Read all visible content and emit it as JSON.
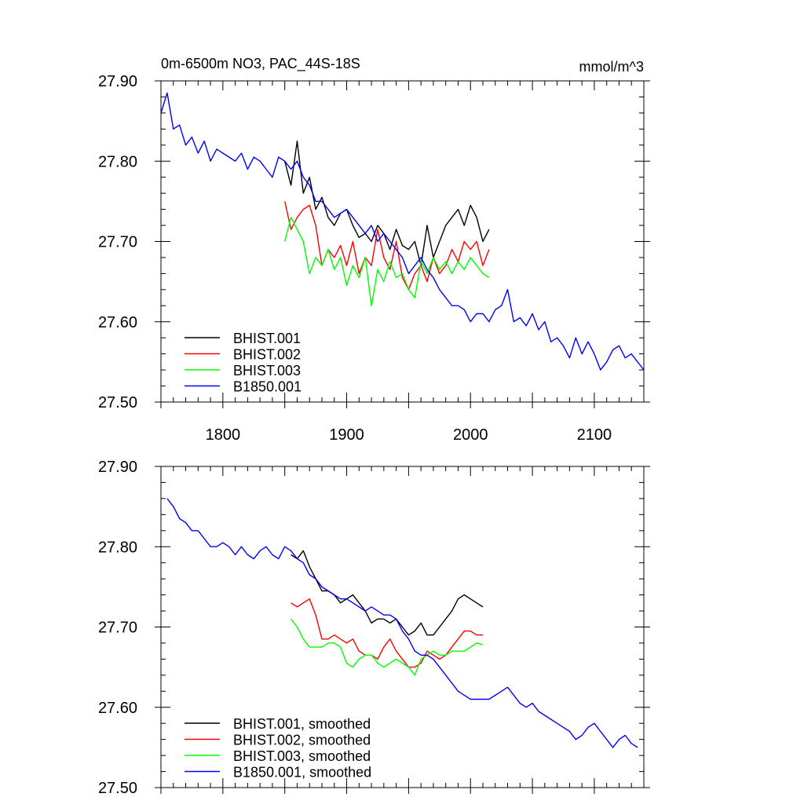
{
  "chart_data": [
    {
      "type": "line",
      "title_left": "0m-6500m NO3, PAC_44S-18S",
      "title_right": "mmol/m^3",
      "xlabel": "",
      "ylabel": "",
      "xlim": [
        1750,
        2140
      ],
      "ylim": [
        27.5,
        27.9
      ],
      "x_ticks": [
        "1800",
        "1900",
        "2000",
        "2100"
      ],
      "y_ticks": [
        "27.50",
        "27.60",
        "27.70",
        "27.80",
        "27.90"
      ],
      "legend_position": "bottom-left",
      "series": [
        {
          "name": "BHIST.001",
          "color": "#000000",
          "x": [
            1850,
            1855,
            1860,
            1865,
            1870,
            1875,
            1880,
            1885,
            1890,
            1895,
            1900,
            1905,
            1910,
            1915,
            1920,
            1925,
            1930,
            1935,
            1940,
            1945,
            1950,
            1955,
            1960,
            1965,
            1970,
            1975,
            1980,
            1985,
            1990,
            1995,
            2000,
            2005,
            2010,
            2015
          ],
          "y": [
            27.8,
            27.77,
            27.825,
            27.76,
            27.78,
            27.74,
            27.755,
            27.73,
            27.72,
            27.735,
            27.74,
            27.72,
            27.705,
            27.71,
            27.7,
            27.72,
            27.71,
            27.69,
            27.715,
            27.695,
            27.69,
            27.7,
            27.67,
            27.72,
            27.68,
            27.7,
            27.72,
            27.73,
            27.74,
            27.72,
            27.745,
            27.73,
            27.7,
            27.715
          ]
        },
        {
          "name": "BHIST.002",
          "color": "#ff0000",
          "x": [
            1850,
            1855,
            1860,
            1865,
            1870,
            1875,
            1880,
            1885,
            1890,
            1895,
            1900,
            1905,
            1910,
            1915,
            1920,
            1925,
            1930,
            1935,
            1940,
            1945,
            1950,
            1955,
            1960,
            1965,
            1970,
            1975,
            1980,
            1985,
            1990,
            1995,
            2000,
            2005,
            2010,
            2015
          ],
          "y": [
            27.75,
            27.715,
            27.73,
            27.74,
            27.745,
            27.72,
            27.67,
            27.69,
            27.68,
            27.695,
            27.67,
            27.7,
            27.66,
            27.68,
            27.67,
            27.715,
            27.68,
            27.665,
            27.7,
            27.655,
            27.64,
            27.66,
            27.67,
            27.65,
            27.68,
            27.66,
            27.67,
            27.69,
            27.675,
            27.7,
            27.69,
            27.7,
            27.67,
            27.69
          ]
        },
        {
          "name": "BHIST.003",
          "color": "#00ff00",
          "x": [
            1850,
            1855,
            1860,
            1865,
            1870,
            1875,
            1880,
            1885,
            1890,
            1895,
            1900,
            1905,
            1910,
            1915,
            1920,
            1925,
            1930,
            1935,
            1940,
            1945,
            1950,
            1955,
            1960,
            1965,
            1970,
            1975,
            1980,
            1985,
            1990,
            1995,
            2000,
            2005,
            2010,
            2015
          ],
          "y": [
            27.7,
            27.73,
            27.715,
            27.7,
            27.66,
            27.68,
            27.67,
            27.69,
            27.665,
            27.68,
            27.645,
            27.67,
            27.655,
            27.68,
            27.62,
            27.665,
            27.65,
            27.675,
            27.655,
            27.66,
            27.64,
            27.63,
            27.675,
            27.66,
            27.68,
            27.665,
            27.675,
            27.66,
            27.675,
            27.665,
            27.68,
            27.67,
            27.66,
            27.655
          ]
        },
        {
          "name": "B1850.001",
          "color": "#0000ff",
          "x": [
            1750,
            1755,
            1760,
            1765,
            1770,
            1775,
            1780,
            1785,
            1790,
            1795,
            1800,
            1805,
            1810,
            1815,
            1820,
            1825,
            1830,
            1835,
            1840,
            1845,
            1850,
            1855,
            1860,
            1865,
            1870,
            1875,
            1880,
            1885,
            1890,
            1895,
            1900,
            1905,
            1910,
            1915,
            1920,
            1925,
            1930,
            1935,
            1940,
            1945,
            1950,
            1955,
            1960,
            1965,
            1970,
            1975,
            1980,
            1985,
            1990,
            1995,
            2000,
            2005,
            2010,
            2015,
            2020,
            2025,
            2030,
            2035,
            2040,
            2045,
            2050,
            2055,
            2060,
            2065,
            2070,
            2075,
            2080,
            2085,
            2090,
            2095,
            2100,
            2105,
            2110,
            2115,
            2120,
            2125,
            2130,
            2135,
            2140
          ],
          "y": [
            27.86,
            27.885,
            27.84,
            27.845,
            27.82,
            27.83,
            27.81,
            27.825,
            27.8,
            27.815,
            27.81,
            27.805,
            27.8,
            27.81,
            27.79,
            27.805,
            27.8,
            27.79,
            27.78,
            27.805,
            27.8,
            27.79,
            27.8,
            27.78,
            27.77,
            27.75,
            27.75,
            27.74,
            27.73,
            27.735,
            27.74,
            27.73,
            27.72,
            27.71,
            27.72,
            27.7,
            27.71,
            27.7,
            27.69,
            27.68,
            27.66,
            27.67,
            27.68,
            27.665,
            27.655,
            27.64,
            27.63,
            27.62,
            27.62,
            27.615,
            27.6,
            27.61,
            27.61,
            27.6,
            27.615,
            27.62,
            27.64,
            27.6,
            27.605,
            27.595,
            27.61,
            27.59,
            27.6,
            27.575,
            27.58,
            27.57,
            27.555,
            27.58,
            27.56,
            27.575,
            27.56,
            27.54,
            27.55,
            27.565,
            27.57,
            27.555,
            27.56,
            27.55,
            27.54
          ]
        }
      ]
    },
    {
      "type": "line",
      "title_left": "",
      "title_right": "",
      "xlabel": "",
      "ylabel": "",
      "xlim": [
        1750,
        2140
      ],
      "ylim": [
        27.5,
        27.9
      ],
      "x_ticks": [],
      "y_ticks": [
        "27.50",
        "27.60",
        "27.70",
        "27.80",
        "27.90"
      ],
      "legend_position": "bottom-left",
      "series": [
        {
          "name": "BHIST.001, smoothed",
          "color": "#000000",
          "x": [
            1855,
            1860,
            1865,
            1870,
            1875,
            1880,
            1885,
            1890,
            1895,
            1900,
            1905,
            1910,
            1915,
            1920,
            1925,
            1930,
            1935,
            1940,
            1945,
            1950,
            1955,
            1960,
            1965,
            1970,
            1975,
            1980,
            1985,
            1990,
            1995,
            2000,
            2005,
            2010
          ],
          "y": [
            27.79,
            27.785,
            27.795,
            27.775,
            27.76,
            27.745,
            27.745,
            27.74,
            27.73,
            27.735,
            27.74,
            27.73,
            27.72,
            27.705,
            27.71,
            27.71,
            27.705,
            27.71,
            27.7,
            27.69,
            27.695,
            27.705,
            27.69,
            27.69,
            27.7,
            27.71,
            27.72,
            27.735,
            27.74,
            27.735,
            27.73,
            27.725
          ]
        },
        {
          "name": "BHIST.002, smoothed",
          "color": "#ff0000",
          "x": [
            1855,
            1860,
            1865,
            1870,
            1875,
            1880,
            1885,
            1890,
            1895,
            1900,
            1905,
            1910,
            1915,
            1920,
            1925,
            1930,
            1935,
            1940,
            1945,
            1950,
            1955,
            1960,
            1965,
            1970,
            1975,
            1980,
            1985,
            1990,
            1995,
            2000,
            2005,
            2010
          ],
          "y": [
            27.73,
            27.725,
            27.73,
            27.735,
            27.715,
            27.685,
            27.685,
            27.69,
            27.685,
            27.68,
            27.685,
            27.67,
            27.665,
            27.665,
            27.66,
            27.675,
            27.685,
            27.67,
            27.66,
            27.65,
            27.65,
            27.655,
            27.67,
            27.665,
            27.66,
            27.665,
            27.675,
            27.685,
            27.695,
            27.695,
            27.69,
            27.69
          ]
        },
        {
          "name": "BHIST.003, smoothed",
          "color": "#00ff00",
          "x": [
            1855,
            1860,
            1865,
            1870,
            1875,
            1880,
            1885,
            1890,
            1895,
            1900,
            1905,
            1910,
            1915,
            1920,
            1925,
            1930,
            1935,
            1940,
            1945,
            1950,
            1955,
            1960,
            1965,
            1970,
            1975,
            1980,
            1985,
            1990,
            1995,
            2000,
            2005,
            2010
          ],
          "y": [
            27.71,
            27.7,
            27.685,
            27.675,
            27.675,
            27.675,
            27.68,
            27.68,
            27.675,
            27.655,
            27.65,
            27.66,
            27.665,
            27.665,
            27.655,
            27.65,
            27.655,
            27.66,
            27.655,
            27.65,
            27.64,
            27.66,
            27.665,
            27.67,
            27.665,
            27.665,
            27.67,
            27.67,
            27.67,
            27.675,
            27.68,
            27.678
          ]
        },
        {
          "name": "B1850.001, smoothed",
          "color": "#0000ff",
          "x": [
            1755,
            1760,
            1765,
            1770,
            1775,
            1780,
            1785,
            1790,
            1795,
            1800,
            1805,
            1810,
            1815,
            1820,
            1825,
            1830,
            1835,
            1840,
            1845,
            1850,
            1855,
            1860,
            1865,
            1870,
            1875,
            1880,
            1885,
            1890,
            1895,
            1900,
            1905,
            1910,
            1915,
            1920,
            1925,
            1930,
            1935,
            1940,
            1945,
            1950,
            1955,
            1960,
            1965,
            1970,
            1975,
            1980,
            1985,
            1990,
            1995,
            2000,
            2005,
            2010,
            2015,
            2020,
            2025,
            2030,
            2035,
            2040,
            2045,
            2050,
            2055,
            2060,
            2065,
            2070,
            2075,
            2080,
            2085,
            2090,
            2095,
            2100,
            2105,
            2110,
            2115,
            2120,
            2125,
            2130,
            2135
          ],
          "y": [
            27.86,
            27.85,
            27.835,
            27.83,
            27.82,
            27.82,
            27.81,
            27.8,
            27.8,
            27.805,
            27.8,
            27.79,
            27.8,
            27.79,
            27.785,
            27.795,
            27.8,
            27.79,
            27.785,
            27.8,
            27.795,
            27.785,
            27.78,
            27.765,
            27.76,
            27.75,
            27.745,
            27.74,
            27.735,
            27.735,
            27.73,
            27.725,
            27.72,
            27.725,
            27.72,
            27.715,
            27.715,
            27.71,
            27.695,
            27.685,
            27.67,
            27.665,
            27.665,
            27.66,
            27.65,
            27.64,
            27.63,
            27.62,
            27.615,
            27.61,
            27.61,
            27.61,
            27.61,
            27.615,
            27.62,
            27.625,
            27.615,
            27.605,
            27.6,
            27.605,
            27.595,
            27.59,
            27.585,
            27.58,
            27.575,
            27.57,
            27.56,
            27.565,
            27.575,
            27.58,
            27.57,
            27.56,
            27.55,
            27.56,
            27.565,
            27.555,
            27.55
          ]
        }
      ]
    }
  ]
}
